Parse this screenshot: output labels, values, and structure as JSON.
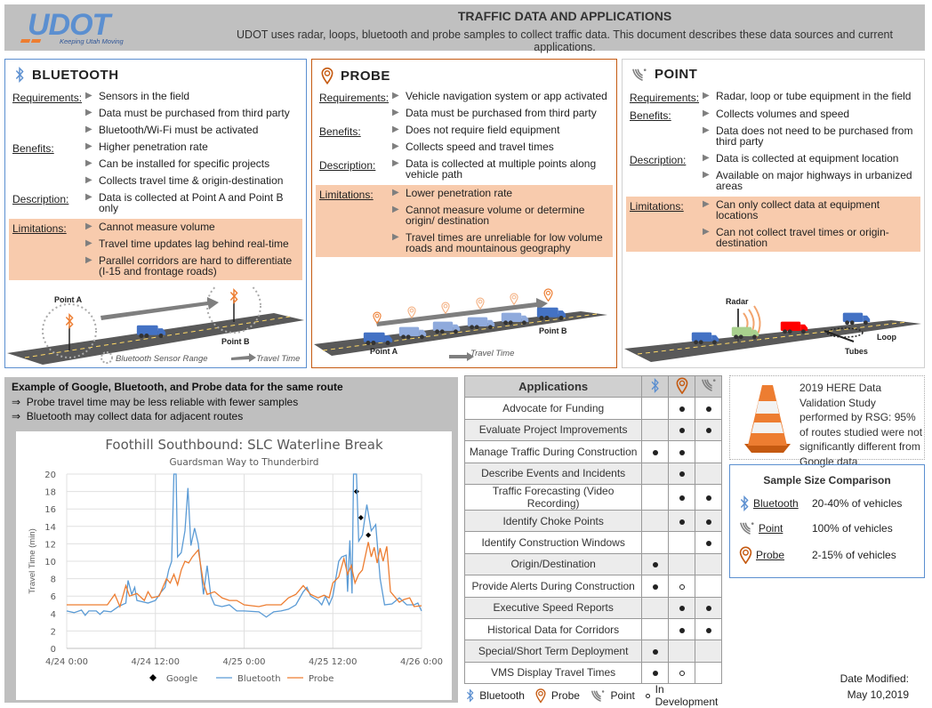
{
  "header": {
    "logo_text": "UDOT",
    "logo_tagline": "Keeping Utah Moving",
    "title": "TRAFFIC DATA AND APPLICATIONS",
    "subtitle": "UDOT uses radar, loops, bluetooth and probe samples to collect traffic data. This document describes these data sources and current applications."
  },
  "colors": {
    "bluetooth": "#5b8fd0",
    "probe": "#c55a11",
    "point": "#7f7f7f",
    "limitation_bg": "#f8cbad"
  },
  "panels": [
    {
      "key": "bluetooth",
      "title": "BLUETOOTH",
      "icon": "bluetooth-icon",
      "rows": [
        {
          "label": "Requirements:",
          "items": [
            "Sensors in the field",
            "Data must be purchased from third party",
            "Bluetooth/Wi-Fi must be activated"
          ]
        },
        {
          "label": "Benefits:",
          "items": [
            "Higher penetration rate",
            "Can be installed for specific projects",
            "Collects travel time & origin-destination"
          ]
        },
        {
          "label": "Description:",
          "items": [
            "Data is collected at Point A and Point B only"
          ]
        },
        {
          "label": "Limitations:",
          "limit": true,
          "items": [
            "Cannot measure volume",
            "Travel time updates lag behind real-time",
            "Parallel corridors are hard to differentiate (I-15 and frontage roads)"
          ]
        }
      ],
      "illustration": {
        "point_a": "Point A",
        "point_b": "Point B",
        "legend_range": "Bluetooth Sensor Range",
        "legend_time": "Travel Time"
      }
    },
    {
      "key": "probe",
      "title": "PROBE",
      "icon": "probe-pin-icon",
      "rows": [
        {
          "label": "Requirements:",
          "items": [
            "Vehicle navigation system or app activated",
            "Data must be purchased from third party"
          ]
        },
        {
          "label": "Benefits:",
          "items": [
            "Does not require field equipment",
            "Collects speed and travel times"
          ]
        },
        {
          "label": "Description:",
          "items": [
            "Data is collected at multiple points along vehicle path"
          ]
        },
        {
          "label": "Limitations:",
          "limit": true,
          "items": [
            "Lower penetration rate",
            "Cannot measure volume or determine origin/ destination",
            "Travel times are unreliable for low volume roads and mountainous geography"
          ]
        }
      ],
      "illustration": {
        "point_a": "Point A",
        "point_b": "Point B",
        "legend_time": "Travel Time"
      }
    },
    {
      "key": "point",
      "title": "POINT",
      "icon": "point-signal-icon",
      "rows": [
        {
          "label": "Requirements:",
          "items": [
            "Radar, loop or tube equipment in the field"
          ]
        },
        {
          "label": "Benefits:",
          "items": [
            "Collects volumes and speed",
            "Data does not need to be purchased from third party"
          ]
        },
        {
          "label": "Description:",
          "items": [
            "Data is collected at equipment location",
            "Available on major highways in urbanized areas"
          ]
        },
        {
          "label": "Limitations:",
          "limit": true,
          "items": [
            "Can only collect data at equipment locations",
            "Can not collect travel times or origin-destination"
          ]
        }
      ],
      "illustration": {
        "radar": "Radar",
        "loop": "Loop",
        "tubes": "Tubes"
      }
    }
  ],
  "example": {
    "title": "Example of Google, Bluetooth, and Probe data for the same route",
    "notes": [
      "Probe travel time may be less reliable with fewer samples",
      "Bluetooth may collect data for adjacent routes"
    ],
    "arrow": "⇒"
  },
  "chart_data": {
    "type": "line",
    "title": "Foothill Southbound: SLC Waterline Break",
    "subtitle": "Guardsman Way to Thunderbird",
    "ylabel": "Travel Time (min)",
    "xlabel": "",
    "ylim": [
      0,
      20
    ],
    "yticks": [
      0,
      2,
      4,
      6,
      8,
      10,
      12,
      14,
      16,
      18,
      20
    ],
    "xlim_hours": [
      0,
      48
    ],
    "xticks": [
      {
        "h": 0,
        "label": "4/24 0:00"
      },
      {
        "h": 12,
        "label": "4/24 12:00"
      },
      {
        "h": 24,
        "label": "4/25 0:00"
      },
      {
        "h": 36,
        "label": "4/25 12:00"
      },
      {
        "h": 48,
        "label": "4/26 0:00"
      }
    ],
    "grid": true,
    "legend_position": "bottom",
    "series": [
      {
        "name": "Google",
        "kind": "marker",
        "color": "#000000",
        "points": [
          [
            39.2,
            18
          ],
          [
            39.8,
            15
          ],
          [
            40.8,
            13
          ]
        ]
      },
      {
        "name": "Bluetooth",
        "kind": "line",
        "color": "#5b9bd5",
        "points": [
          [
            0,
            4.3
          ],
          [
            1,
            4.1
          ],
          [
            2,
            4.4
          ],
          [
            2.5,
            3.8
          ],
          [
            3,
            4.3
          ],
          [
            4,
            4.3
          ],
          [
            4.5,
            3.9
          ],
          [
            5,
            4.3
          ],
          [
            6,
            4.2
          ],
          [
            7,
            4.8
          ],
          [
            8,
            5.2
          ],
          [
            8.3,
            7.8
          ],
          [
            8.8,
            6.2
          ],
          [
            9.2,
            7
          ],
          [
            9.5,
            5.5
          ],
          [
            11,
            5.2
          ],
          [
            12,
            5.5
          ],
          [
            12.8,
            6.5
          ],
          [
            13.3,
            7
          ],
          [
            13.8,
            9
          ],
          [
            14.2,
            10
          ],
          [
            14.5,
            20
          ],
          [
            14.8,
            20
          ],
          [
            15,
            10.5
          ],
          [
            15.5,
            11
          ],
          [
            16,
            13.5
          ],
          [
            16.4,
            18.4
          ],
          [
            16.8,
            11.8
          ],
          [
            17.3,
            13.8
          ],
          [
            17.8,
            12
          ],
          [
            18.5,
            6.2
          ],
          [
            19,
            9.5
          ],
          [
            19.5,
            6
          ],
          [
            20,
            5
          ],
          [
            21,
            4.8
          ],
          [
            22,
            5
          ],
          [
            23,
            4.3
          ],
          [
            24,
            4.3
          ],
          [
            26,
            4.2
          ],
          [
            27,
            3.6
          ],
          [
            28,
            4.2
          ],
          [
            29,
            4.3
          ],
          [
            30,
            4.5
          ],
          [
            31,
            5
          ],
          [
            32,
            6.5
          ],
          [
            32.5,
            7
          ],
          [
            33,
            6
          ],
          [
            34,
            5.5
          ],
          [
            34.5,
            5
          ],
          [
            35,
            6
          ],
          [
            35.5,
            5
          ],
          [
            36,
            6
          ],
          [
            36.3,
            7.5
          ],
          [
            36.8,
            10
          ],
          [
            37.2,
            10.5
          ],
          [
            37.8,
            10.7
          ],
          [
            38,
            6.5
          ],
          [
            38.3,
            12.4
          ],
          [
            38.6,
            6.3
          ],
          [
            38.8,
            20
          ],
          [
            39.2,
            20
          ],
          [
            39.5,
            12.3
          ],
          [
            40,
            13
          ],
          [
            40.6,
            16.5
          ],
          [
            41.2,
            13.5
          ],
          [
            41.8,
            14.2
          ],
          [
            42.4,
            8
          ],
          [
            43,
            5
          ],
          [
            44,
            5.1
          ],
          [
            45,
            5.8
          ],
          [
            46,
            5
          ],
          [
            47,
            5
          ],
          [
            47.5,
            5.2
          ],
          [
            48,
            4.3
          ]
        ]
      },
      {
        "name": "Probe",
        "kind": "line",
        "color": "#ed7d31",
        "points": [
          [
            0,
            5
          ],
          [
            5.5,
            5
          ],
          [
            6.5,
            6.2
          ],
          [
            7.2,
            4.8
          ],
          [
            8,
            7.2
          ],
          [
            8.5,
            6
          ],
          [
            9.5,
            6.3
          ],
          [
            10.5,
            5.5
          ],
          [
            11,
            6.5
          ],
          [
            11.5,
            5.8
          ],
          [
            12.5,
            6
          ],
          [
            13.5,
            8
          ],
          [
            14,
            7.5
          ],
          [
            14.5,
            8.5
          ],
          [
            15,
            7.3
          ],
          [
            15.5,
            9
          ],
          [
            16,
            10
          ],
          [
            16.5,
            9.8
          ],
          [
            17,
            10.5
          ],
          [
            17.8,
            11.3
          ],
          [
            18.5,
            7.5
          ],
          [
            19,
            6.2
          ],
          [
            20,
            6.5
          ],
          [
            21,
            5.8
          ],
          [
            22,
            5.5
          ],
          [
            23,
            5.5
          ],
          [
            24,
            5
          ],
          [
            26,
            4.8
          ],
          [
            27,
            5
          ],
          [
            29,
            5
          ],
          [
            30,
            5.8
          ],
          [
            31,
            6.2
          ],
          [
            32,
            7.2
          ],
          [
            33,
            6.2
          ],
          [
            34,
            5.8
          ],
          [
            34.8,
            6.1
          ],
          [
            35.5,
            5.8
          ],
          [
            36,
            7.5
          ],
          [
            36.8,
            8.2
          ],
          [
            37.5,
            10.3
          ],
          [
            38,
            8.5
          ],
          [
            38.5,
            9.5
          ],
          [
            39,
            7.5
          ],
          [
            39.5,
            8.5
          ],
          [
            40,
            9
          ],
          [
            40.8,
            12.2
          ],
          [
            41.2,
            10.5
          ],
          [
            41.6,
            11.6
          ],
          [
            42,
            9.8
          ],
          [
            42.4,
            11.5
          ],
          [
            42.8,
            10
          ],
          [
            43.3,
            11.7
          ],
          [
            43.8,
            6.5
          ],
          [
            44.3,
            6
          ],
          [
            45,
            5.3
          ],
          [
            45.6,
            5.6
          ],
          [
            46.4,
            5.8
          ],
          [
            47,
            4.8
          ],
          [
            48,
            4.9
          ]
        ]
      }
    ]
  },
  "applications": {
    "header": "Applications",
    "rows": [
      {
        "name": "Advocate for Funding",
        "bt": "",
        "probe": "yes",
        "point": "yes"
      },
      {
        "name": "Evaluate Project Improvements",
        "bt": "",
        "probe": "yes",
        "point": "yes"
      },
      {
        "name": "Manage Traffic During Construction",
        "bt": "yes",
        "probe": "yes",
        "point": ""
      },
      {
        "name": "Describe Events and Incidents",
        "bt": "",
        "probe": "yes",
        "point": ""
      },
      {
        "name": "Traffic Forecasting (Video Recording)",
        "bt": "",
        "probe": "yes",
        "point": "yes"
      },
      {
        "name": "Identify Choke Points",
        "bt": "",
        "probe": "yes",
        "point": "yes"
      },
      {
        "name": "Identify Construction Windows",
        "bt": "",
        "probe": "",
        "point": "yes"
      },
      {
        "name": "Origin/Destination",
        "bt": "yes",
        "probe": "",
        "point": ""
      },
      {
        "name": "Provide Alerts During Construction",
        "bt": "yes",
        "probe": "dev",
        "point": ""
      },
      {
        "name": "Executive Speed Reports",
        "bt": "",
        "probe": "yes",
        "point": "yes"
      },
      {
        "name": "Historical Data for Corridors",
        "bt": "",
        "probe": "yes",
        "point": "yes"
      },
      {
        "name": "Special/Short Term Deployment",
        "bt": "yes",
        "probe": "",
        "point": ""
      },
      {
        "name": "VMS Display Travel Times",
        "bt": "yes",
        "probe": "dev",
        "point": ""
      }
    ],
    "legend": {
      "bluetooth": "Bluetooth",
      "probe": "Probe",
      "point": "Point",
      "dev": "In Development"
    }
  },
  "study": {
    "text": "2019 HERE Data Validation Study  performed by RSG: 95% of routes studied were not significantly different from Google data."
  },
  "sample_size": {
    "title": "Sample Size Comparison",
    "rows": [
      {
        "name": "Bluetooth",
        "value": "20-40% of vehicles"
      },
      {
        "name": "Point",
        "value": "100% of vehicles"
      },
      {
        "name": "Probe",
        "value": "2-15% of vehicles"
      }
    ]
  },
  "date": {
    "label": "Date Modified:",
    "value": "May 10,2019"
  }
}
